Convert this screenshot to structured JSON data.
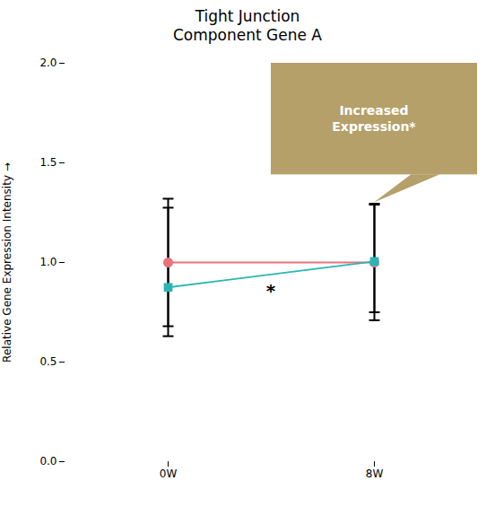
{
  "chart_data": {
    "type": "line",
    "title": "Tight Junction\nComponent Gene A",
    "ylabel": "Relative Gene Expression Intensity",
    "categories": [
      "0W",
      "8W"
    ],
    "series": [
      {
        "color": "#e8737a",
        "marker": "circle",
        "values": [
          1.0,
          1.0
        ],
        "yerr_low": [
          0.32,
          0.29
        ],
        "yerr_high": [
          0.32,
          0.29
        ]
      },
      {
        "color": "#2ab5b5",
        "marker": "square",
        "values": [
          0.875,
          1.005
        ],
        "yerr_low": [
          0.245,
          0.255
        ],
        "yerr_high": [
          0.4,
          0.29
        ]
      }
    ],
    "ylim": [
      0.0,
      2.0
    ],
    "yticks": [
      {
        "value": 0.0,
        "label": "0.0"
      },
      0.5,
      {
        "value": 1.0,
        "label": "1.0"
      },
      1.5,
      {
        "value": 2.0,
        "label": "2.0"
      }
    ],
    "grid": false,
    "annotations": [
      {
        "text": "Increased\nExpression*",
        "x": "8W",
        "y": 1.3,
        "color": "#b5a06a"
      },
      {
        "text": "*",
        "y": 0.855
      }
    ]
  }
}
